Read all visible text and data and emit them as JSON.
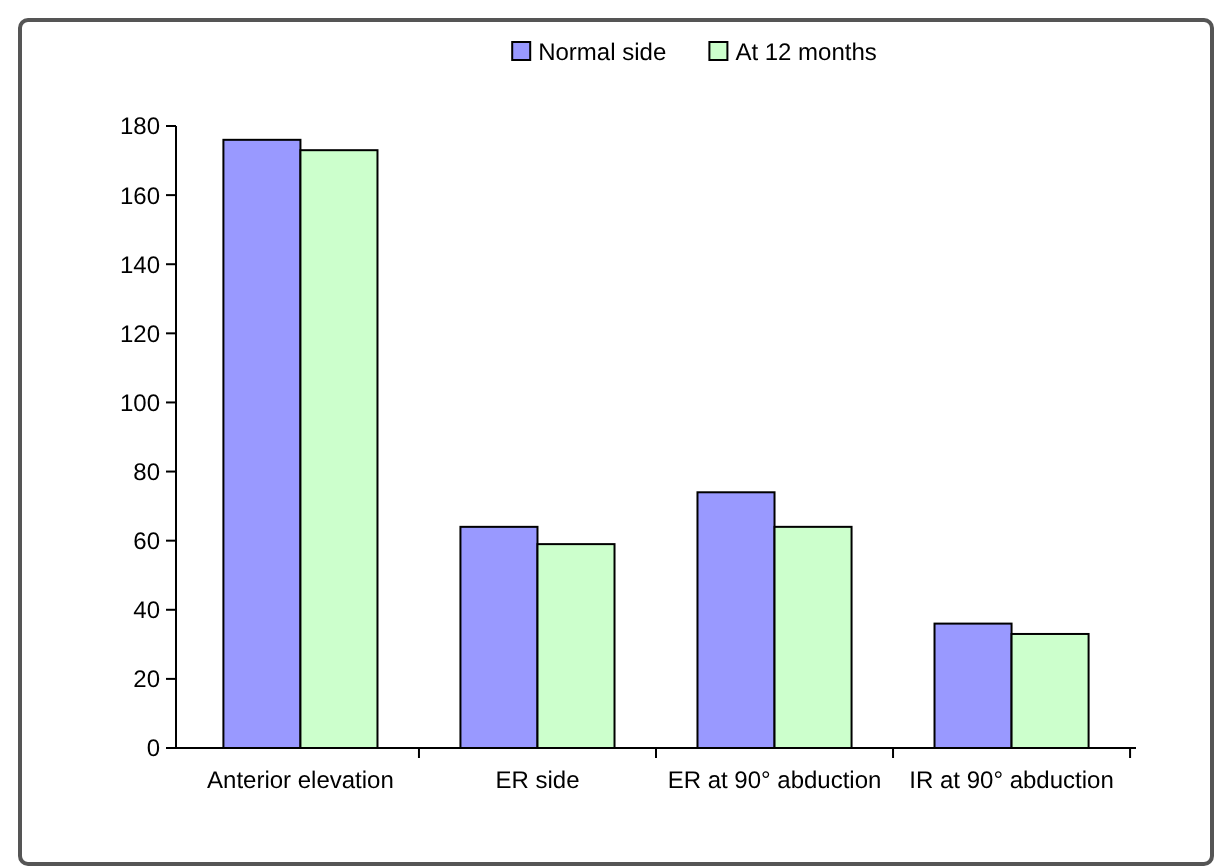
{
  "chart_data": {
    "type": "bar",
    "categories": [
      "Anterior elevation",
      "ER side",
      "ER at 90° abduction",
      "IR at 90° abduction"
    ],
    "series": [
      {
        "name": "Normal side",
        "color": "#9999ff",
        "values": [
          176,
          64,
          74,
          36
        ]
      },
      {
        "name": "At 12 months",
        "color": "#ccffcc",
        "values": [
          173,
          59,
          64,
          33
        ]
      }
    ],
    "ylim": [
      0,
      180
    ],
    "yticks": [
      0,
      20,
      40,
      60,
      80,
      100,
      120,
      140,
      160,
      180
    ],
    "legend": "top",
    "grid": false
  }
}
